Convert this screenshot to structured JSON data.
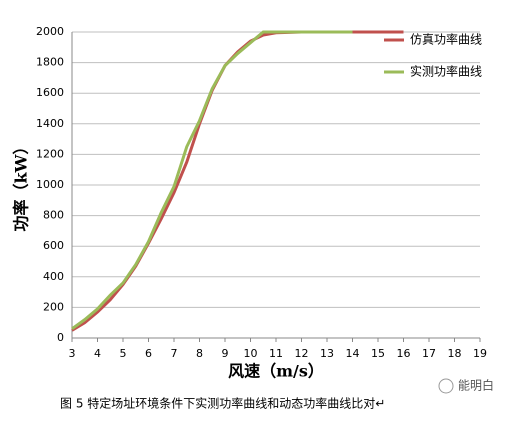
{
  "chart_data": {
    "type": "line",
    "x_label": "风速（m/s）",
    "y_label": "功率（kW）",
    "caption": "图 5 特定场址环境条件下实测功率曲线和动态功率曲线比对↵",
    "watermark": "能明白",
    "x": [
      3,
      3.5,
      4,
      4.5,
      5,
      5.5,
      6,
      6.5,
      7,
      7.5,
      8,
      8.5,
      9,
      9.5,
      10,
      10.5,
      11,
      12,
      13,
      14,
      15,
      16
    ],
    "series": [
      {
        "name": "仿真功率曲线",
        "color": "#c0504d",
        "values": [
          50,
          100,
          170,
          250,
          350,
          470,
          620,
          780,
          950,
          1150,
          1400,
          1620,
          1780,
          1870,
          1940,
          1980,
          1995,
          2000,
          2000,
          2000,
          2000,
          2000
        ]
      },
      {
        "name": "实测功率曲线",
        "color": "#9bbb59",
        "values": [
          60,
          120,
          190,
          280,
          360,
          480,
          630,
          820,
          990,
          1250,
          1420,
          1630,
          1780,
          1860,
          1930,
          2000,
          2000,
          2000,
          2000,
          2000,
          null,
          null
        ]
      }
    ],
    "xlim": [
      3,
      19
    ],
    "xticks": [
      3,
      4,
      5,
      6,
      7,
      8,
      9,
      10,
      11,
      12,
      13,
      14,
      15,
      16,
      17,
      18,
      19
    ],
    "ylim": [
      0,
      2000
    ],
    "yticks": [
      0,
      200,
      400,
      600,
      800,
      1000,
      1200,
      1400,
      1600,
      1800,
      2000
    ],
    "grid": true,
    "legend": "upper right"
  }
}
